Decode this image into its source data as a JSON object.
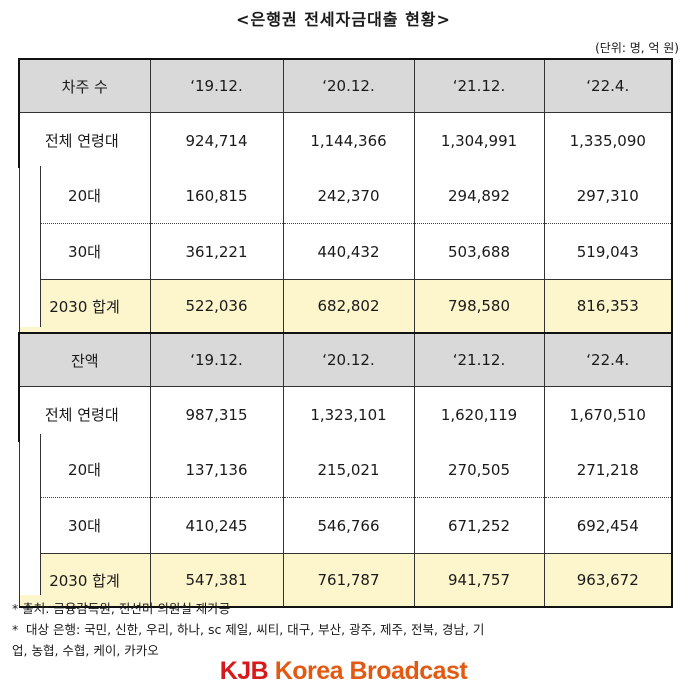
{
  "title": "<은행권 전세자금대출 현황>",
  "unit": "(단위: 명, 억 원)",
  "periods": [
    "‘19.12.",
    "‘20.12.",
    "‘21.12.",
    "‘22.4."
  ],
  "sections": [
    {
      "header": "차주 수",
      "rows": [
        {
          "label": "전체 연령대",
          "values": [
            "924,714",
            "1,144,366",
            "1,304,991",
            "1,335,090"
          ]
        },
        {
          "label": "20대",
          "values": [
            "160,815",
            "242,370",
            "294,892",
            "297,310"
          ]
        },
        {
          "label": "30대",
          "values": [
            "361,221",
            "440,432",
            "503,688",
            "519,043"
          ]
        },
        {
          "label": "2030 합계",
          "values": [
            "522,036",
            "682,802",
            "798,580",
            "816,353"
          ]
        }
      ]
    },
    {
      "header": "잔액",
      "rows": [
        {
          "label": "전체 연령대",
          "values": [
            "987,315",
            "1,323,101",
            "1,620,119",
            "1,670,510"
          ]
        },
        {
          "label": "20대",
          "values": [
            "137,136",
            "215,021",
            "270,505",
            "271,218"
          ]
        },
        {
          "label": "30대",
          "values": [
            "410,245",
            "546,766",
            "671,252",
            "692,454"
          ]
        },
        {
          "label": "2030 합계",
          "values": [
            "547,381",
            "761,787",
            "941,757",
            "963,672"
          ]
        }
      ]
    }
  ],
  "notes": {
    "source": "* 출처: 금융감독원, 진선미 의원실 재가공",
    "banks_mark": "*",
    "banks_line1": "대상 은행: 국민, 신한, 우리, 하나, sc 제일, 씨티, 대구, 부산, 광주, 제주, 전북, 경남, 기",
    "banks_line2": "업, 농협, 수협, 케이, 카카오"
  },
  "logo": {
    "kjb": "KJB",
    "rest": "Korea Broadcast",
    "colors": {
      "kjb": "#d7191c",
      "rest": "#e25a12"
    }
  }
}
